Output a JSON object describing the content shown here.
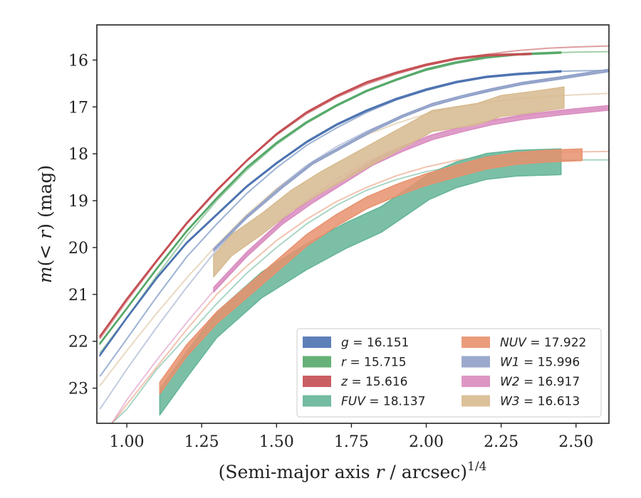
{
  "chart_data": {
    "type": "line",
    "xlabel": "(Semi-major axis r / arcsec)",
    "xlabel_parts": {
      "pre": "(Semi-major axis ",
      "var": "r",
      "post": " / arcsec)",
      "sup": "1/4"
    },
    "ylabel": "m(< r) (mag)",
    "ylabel_parts": {
      "pre": "m(< ",
      "var": "r",
      "post": ") (mag)"
    },
    "xlim": [
      0.9,
      2.61
    ],
    "ylim": [
      23.75,
      15.25
    ],
    "y_inverted": true,
    "grid": false,
    "legend_position": "lower-right",
    "xticks": [
      "1.00",
      "1.25",
      "1.50",
      "1.75",
      "2.00",
      "2.25",
      "2.50"
    ],
    "xtick_values": [
      1.0,
      1.25,
      1.5,
      1.75,
      2.0,
      2.25,
      2.5
    ],
    "yticks": [
      "16",
      "17",
      "18",
      "19",
      "20",
      "21",
      "22",
      "23"
    ],
    "ytick_values": [
      16,
      17,
      18,
      19,
      20,
      21,
      22,
      23
    ],
    "series": [
      {
        "name": "g = 16.151",
        "var": "g",
        "value": "16.151",
        "italic": false,
        "color": "#4c72b0",
        "model": [
          [
            0.91,
            22.75
          ],
          [
            1.0,
            21.95
          ],
          [
            1.1,
            21.05
          ],
          [
            1.2,
            20.2
          ],
          [
            1.3,
            19.5
          ],
          [
            1.4,
            18.85
          ],
          [
            1.5,
            18.3
          ],
          [
            1.6,
            17.82
          ],
          [
            1.7,
            17.45
          ],
          [
            1.8,
            17.12
          ],
          [
            1.9,
            16.85
          ],
          [
            2.0,
            16.65
          ],
          [
            2.1,
            16.48
          ],
          [
            2.2,
            16.36
          ],
          [
            2.3,
            16.29
          ],
          [
            2.4,
            16.25
          ],
          [
            2.5,
            16.23
          ],
          [
            2.61,
            16.22
          ]
        ],
        "measured": [
          [
            0.91,
            22.3
          ],
          [
            1.0,
            21.5
          ],
          [
            1.1,
            20.65
          ],
          [
            1.2,
            19.9
          ],
          [
            1.3,
            19.3
          ],
          [
            1.4,
            18.7
          ],
          [
            1.5,
            18.2
          ],
          [
            1.6,
            17.75
          ],
          [
            1.7,
            17.38
          ],
          [
            1.8,
            17.08
          ],
          [
            1.9,
            16.83
          ],
          [
            2.0,
            16.63
          ],
          [
            2.1,
            16.47
          ],
          [
            2.2,
            16.36
          ],
          [
            2.3,
            16.3
          ],
          [
            2.45,
            16.24
          ]
        ],
        "band_width": 0.03
      },
      {
        "name": "r = 15.715",
        "var": "r",
        "value": "15.715",
        "italic": false,
        "color": "#55a868",
        "model": [
          [
            0.91,
            22.25
          ],
          [
            1.0,
            21.5
          ],
          [
            1.1,
            20.6
          ],
          [
            1.2,
            19.75
          ],
          [
            1.3,
            19.0
          ],
          [
            1.4,
            18.35
          ],
          [
            1.5,
            17.8
          ],
          [
            1.6,
            17.35
          ],
          [
            1.7,
            16.98
          ],
          [
            1.8,
            16.67
          ],
          [
            1.9,
            16.42
          ],
          [
            2.0,
            16.22
          ],
          [
            2.1,
            16.07
          ],
          [
            2.2,
            15.96
          ],
          [
            2.3,
            15.89
          ],
          [
            2.4,
            15.85
          ],
          [
            2.5,
            15.83
          ],
          [
            2.61,
            15.82
          ]
        ],
        "measured": [
          [
            0.91,
            22.05
          ],
          [
            1.0,
            21.3
          ],
          [
            1.1,
            20.45
          ],
          [
            1.2,
            19.65
          ],
          [
            1.3,
            18.95
          ],
          [
            1.4,
            18.3
          ],
          [
            1.5,
            17.77
          ],
          [
            1.6,
            17.33
          ],
          [
            1.7,
            16.97
          ],
          [
            1.8,
            16.66
          ],
          [
            1.9,
            16.42
          ],
          [
            2.0,
            16.2
          ],
          [
            2.1,
            16.05
          ],
          [
            2.2,
            15.94
          ],
          [
            2.3,
            15.88
          ],
          [
            2.45,
            15.84
          ]
        ],
        "band_width": 0.03
      },
      {
        "name": "z = 15.616",
        "var": "z",
        "value": "15.616",
        "italic": false,
        "color": "#c44e52",
        "model": [
          [
            0.91,
            21.95
          ],
          [
            1.0,
            21.15
          ],
          [
            1.1,
            20.3
          ],
          [
            1.2,
            19.5
          ],
          [
            1.3,
            18.8
          ],
          [
            1.4,
            18.15
          ],
          [
            1.5,
            17.6
          ],
          [
            1.6,
            17.15
          ],
          [
            1.7,
            16.8
          ],
          [
            1.8,
            16.52
          ],
          [
            1.9,
            16.3
          ],
          [
            2.0,
            16.12
          ],
          [
            2.1,
            15.98
          ],
          [
            2.2,
            15.88
          ],
          [
            2.3,
            15.8
          ],
          [
            2.4,
            15.75
          ],
          [
            2.5,
            15.72
          ],
          [
            2.61,
            15.7
          ]
        ],
        "measured": [
          [
            0.91,
            21.9
          ],
          [
            1.0,
            21.1
          ],
          [
            1.1,
            20.28
          ],
          [
            1.2,
            19.48
          ],
          [
            1.3,
            18.78
          ],
          [
            1.4,
            18.15
          ],
          [
            1.5,
            17.58
          ],
          [
            1.6,
            17.12
          ],
          [
            1.7,
            16.77
          ],
          [
            1.8,
            16.48
          ],
          [
            1.9,
            16.27
          ],
          [
            2.0,
            16.1
          ],
          [
            2.1,
            15.97
          ],
          [
            2.2,
            15.9
          ],
          [
            2.35,
            15.87
          ]
        ],
        "band_width": 0.03
      },
      {
        "name": "FUV = 18.137",
        "var": "FUV",
        "value": "18.137",
        "italic": true,
        "color": "#64b497",
        "model": [
          [
            0.95,
            23.75
          ],
          [
            1.0,
            23.45
          ],
          [
            1.1,
            22.6
          ],
          [
            1.2,
            21.9
          ],
          [
            1.3,
            21.2
          ],
          [
            1.4,
            20.55
          ],
          [
            1.5,
            20.0
          ],
          [
            1.6,
            19.5
          ],
          [
            1.7,
            19.1
          ],
          [
            1.8,
            18.78
          ],
          [
            1.9,
            18.55
          ],
          [
            2.0,
            18.38
          ],
          [
            2.1,
            18.27
          ],
          [
            2.2,
            18.2
          ],
          [
            2.3,
            18.16
          ],
          [
            2.4,
            18.14
          ],
          [
            2.5,
            18.13
          ],
          [
            2.61,
            18.13
          ]
        ],
        "measured": [
          [
            1.11,
            23.3
          ],
          [
            1.2,
            22.5
          ],
          [
            1.3,
            21.65
          ],
          [
            1.45,
            20.8
          ],
          [
            1.6,
            20.2
          ],
          [
            1.73,
            19.75
          ],
          [
            1.85,
            19.4
          ],
          [
            1.93,
            19.05
          ],
          [
            2.01,
            18.7
          ],
          [
            2.1,
            18.45
          ],
          [
            2.2,
            18.27
          ],
          [
            2.3,
            18.2
          ],
          [
            2.45,
            18.17
          ]
        ],
        "band_width": 0.55
      },
      {
        "name": "NUV = 17.922",
        "var": "NUV",
        "value": "17.922",
        "italic": true,
        "color": "#e8916d",
        "model": [
          [
            0.95,
            23.75
          ],
          [
            1.0,
            23.35
          ],
          [
            1.1,
            22.55
          ],
          [
            1.2,
            21.75
          ],
          [
            1.3,
            21.0
          ],
          [
            1.4,
            20.4
          ],
          [
            1.5,
            19.85
          ],
          [
            1.6,
            19.4
          ],
          [
            1.7,
            19.02
          ],
          [
            1.8,
            18.72
          ],
          [
            1.9,
            18.47
          ],
          [
            2.0,
            18.28
          ],
          [
            2.1,
            18.14
          ],
          [
            2.2,
            18.05
          ],
          [
            2.3,
            18.0
          ],
          [
            2.4,
            17.97
          ],
          [
            2.5,
            17.96
          ],
          [
            2.61,
            17.95
          ]
        ],
        "measured": [
          [
            1.11,
            23.0
          ],
          [
            1.2,
            22.2
          ],
          [
            1.3,
            21.5
          ],
          [
            1.4,
            20.95
          ],
          [
            1.5,
            20.4
          ],
          [
            1.6,
            19.85
          ],
          [
            1.7,
            19.42
          ],
          [
            1.8,
            19.05
          ],
          [
            1.9,
            18.78
          ],
          [
            2.0,
            18.55
          ],
          [
            2.1,
            18.37
          ],
          [
            2.2,
            18.2
          ],
          [
            2.3,
            18.1
          ],
          [
            2.4,
            18.05
          ],
          [
            2.52,
            18.02
          ]
        ],
        "band_width": 0.25
      },
      {
        "name": "W1 = 15.996",
        "var": "W1",
        "value": "15.996",
        "italic": true,
        "color": "#8fa0c8",
        "model": [
          [
            0.91,
            23.45
          ],
          [
            1.0,
            22.6
          ],
          [
            1.1,
            21.7
          ],
          [
            1.2,
            20.85
          ],
          [
            1.3,
            20.05
          ],
          [
            1.4,
            19.35
          ],
          [
            1.5,
            18.75
          ],
          [
            1.6,
            18.25
          ],
          [
            1.7,
            17.85
          ],
          [
            1.8,
            17.52
          ],
          [
            1.9,
            17.25
          ],
          [
            2.0,
            17.02
          ],
          [
            2.1,
            16.83
          ],
          [
            2.2,
            16.66
          ],
          [
            2.3,
            16.52
          ],
          [
            2.4,
            16.42
          ],
          [
            2.5,
            16.33
          ],
          [
            2.61,
            16.25
          ]
        ],
        "measured": [
          [
            1.29,
            20.05
          ],
          [
            1.4,
            19.35
          ],
          [
            1.52,
            18.7
          ],
          [
            1.62,
            18.2
          ],
          [
            1.72,
            17.85
          ],
          [
            1.82,
            17.5
          ],
          [
            1.92,
            17.2
          ],
          [
            2.02,
            16.95
          ],
          [
            2.12,
            16.78
          ],
          [
            2.22,
            16.63
          ],
          [
            2.32,
            16.5
          ],
          [
            2.45,
            16.38
          ],
          [
            2.61,
            16.22
          ]
        ],
        "band_width": 0.05
      },
      {
        "name": "W2 = 16.917",
        "var": "W2",
        "value": "16.917",
        "italic": true,
        "color": "#d98cbf",
        "model": [
          [
            0.95,
            23.75
          ],
          [
            1.0,
            23.25
          ],
          [
            1.1,
            22.4
          ],
          [
            1.2,
            21.6
          ],
          [
            1.3,
            20.85
          ],
          [
            1.4,
            20.15
          ],
          [
            1.5,
            19.55
          ],
          [
            1.6,
            19.0
          ],
          [
            1.7,
            18.55
          ],
          [
            1.8,
            18.18
          ],
          [
            1.9,
            17.88
          ],
          [
            2.0,
            17.63
          ],
          [
            2.1,
            17.45
          ],
          [
            2.2,
            17.32
          ],
          [
            2.3,
            17.22
          ],
          [
            2.4,
            17.14
          ],
          [
            2.5,
            17.08
          ],
          [
            2.61,
            17.02
          ]
        ],
        "measured": [
          [
            1.29,
            20.9
          ],
          [
            1.4,
            20.15
          ],
          [
            1.52,
            19.45
          ],
          [
            1.62,
            19.0
          ],
          [
            1.72,
            18.6
          ],
          [
            1.82,
            18.2
          ],
          [
            1.92,
            17.9
          ],
          [
            2.02,
            17.65
          ],
          [
            2.12,
            17.48
          ],
          [
            2.22,
            17.33
          ],
          [
            2.32,
            17.22
          ],
          [
            2.45,
            17.12
          ],
          [
            2.61,
            17.02
          ]
        ],
        "band_width": 0.1
      },
      {
        "name": "W3 = 16.613",
        "var": "W3",
        "value": "16.613",
        "italic": true,
        "color": "#d7ba8f",
        "model": [
          [
            0.91,
            22.95
          ],
          [
            1.0,
            22.2
          ],
          [
            1.1,
            21.4
          ],
          [
            1.2,
            20.65
          ],
          [
            1.3,
            19.95
          ],
          [
            1.4,
            19.3
          ],
          [
            1.5,
            18.75
          ],
          [
            1.6,
            18.3
          ],
          [
            1.7,
            17.92
          ],
          [
            1.8,
            17.6
          ],
          [
            1.9,
            17.35
          ],
          [
            2.0,
            17.15
          ],
          [
            2.1,
            17.0
          ],
          [
            2.2,
            16.9
          ],
          [
            2.3,
            16.83
          ],
          [
            2.4,
            16.78
          ],
          [
            2.5,
            16.74
          ],
          [
            2.61,
            16.71
          ]
        ],
        "measured": [
          [
            1.29,
            20.4
          ],
          [
            1.35,
            19.95
          ],
          [
            1.45,
            19.5
          ],
          [
            1.55,
            19.0
          ],
          [
            1.65,
            18.6
          ],
          [
            1.75,
            18.25
          ],
          [
            1.85,
            17.9
          ],
          [
            1.95,
            17.55
          ],
          [
            2.02,
            17.3
          ],
          [
            2.1,
            17.22
          ],
          [
            2.17,
            17.15
          ],
          [
            2.25,
            16.98
          ],
          [
            2.35,
            16.9
          ],
          [
            2.46,
            16.8
          ]
        ],
        "band_width": 0.45
      }
    ]
  }
}
